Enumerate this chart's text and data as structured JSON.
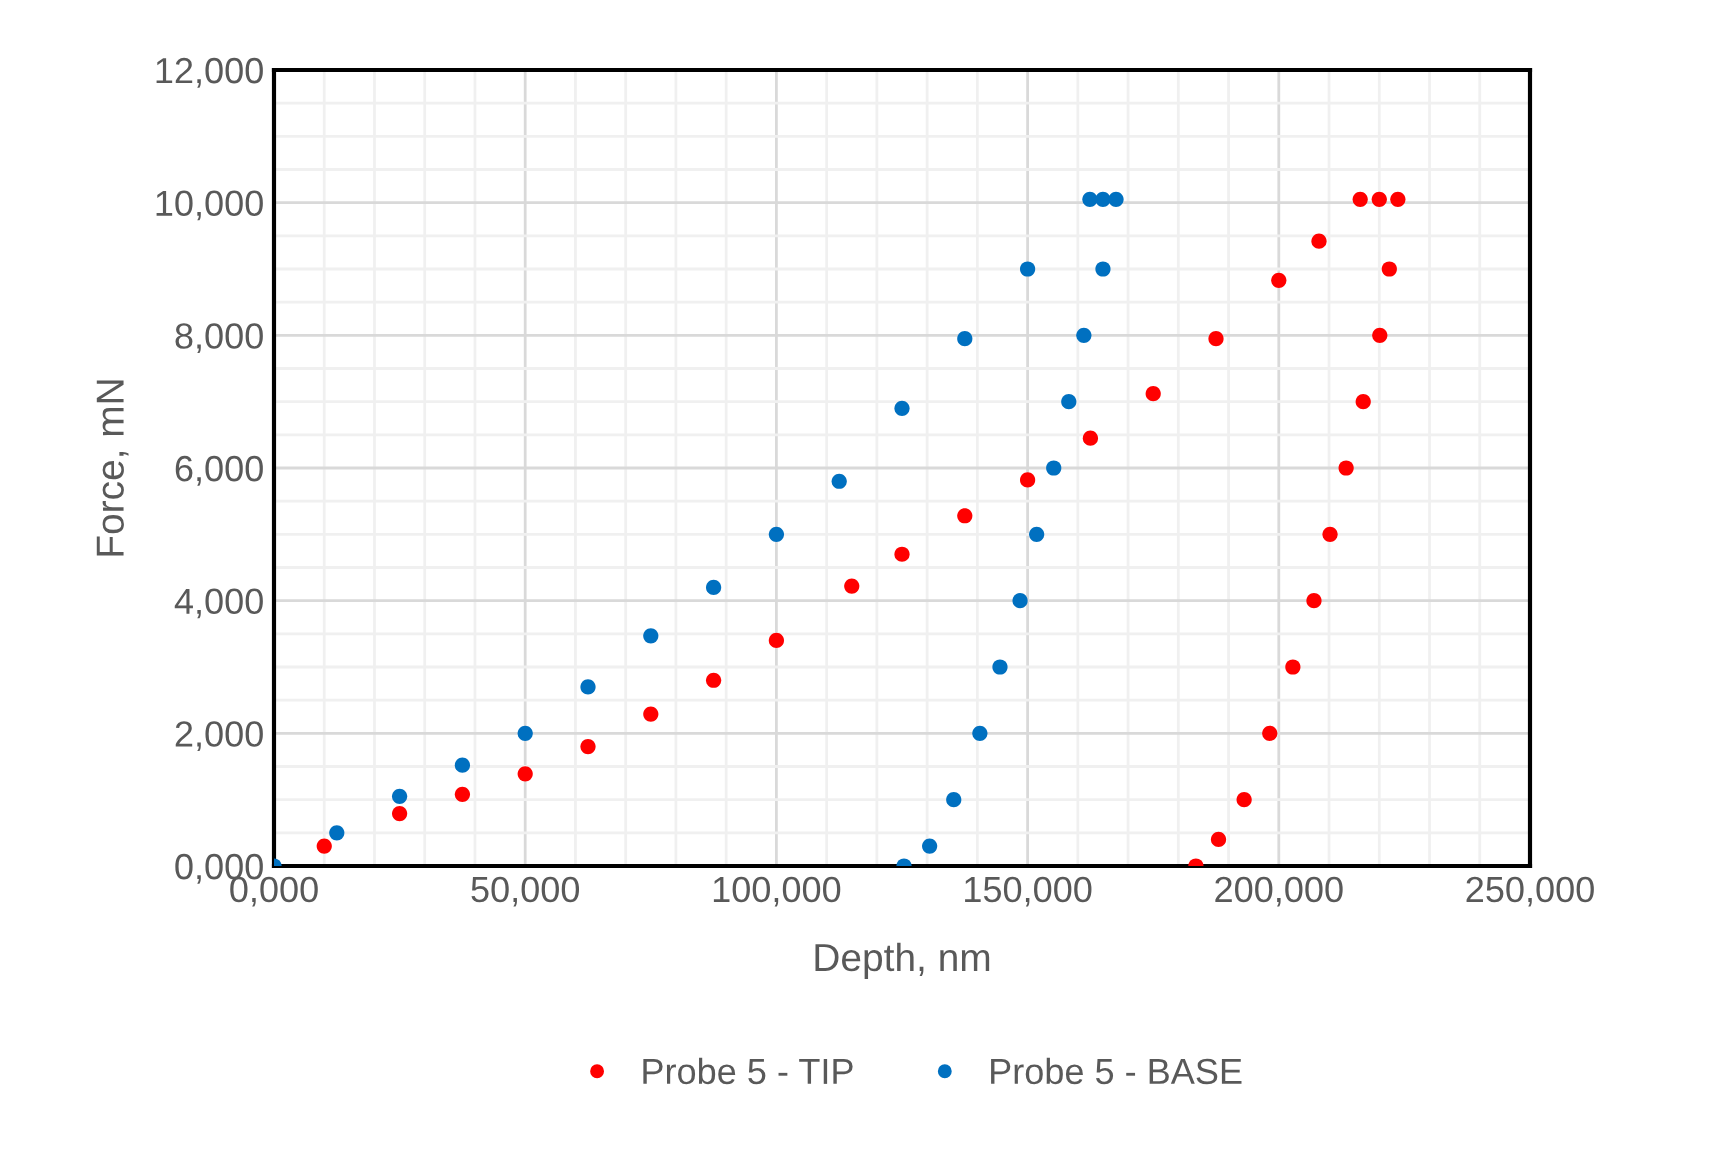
{
  "chart_data": {
    "type": "scatter",
    "xlabel": "Depth, nm",
    "ylabel": "Force, mN",
    "marker": "circle",
    "grid": true,
    "legend": "bottom",
    "xlim": [
      0,
      250
    ],
    "ylim": [
      0,
      12
    ],
    "xticks": [
      {
        "value": 0,
        "label": "0,000"
      },
      {
        "value": 50,
        "label": "50,000"
      },
      {
        "value": 100,
        "label": "100,000"
      },
      {
        "value": 150,
        "label": "150,000"
      },
      {
        "value": 200,
        "label": "200,000"
      },
      {
        "value": 250,
        "label": "250,000"
      }
    ],
    "yticks": [
      {
        "value": 0,
        "label": "0,000"
      },
      {
        "value": 2,
        "label": "2,000"
      },
      {
        "value": 4,
        "label": "4,000"
      },
      {
        "value": 6,
        "label": "6,000"
      },
      {
        "value": 8,
        "label": "8,000"
      },
      {
        "value": 10,
        "label": "10,000"
      },
      {
        "value": 12,
        "label": "12,000"
      }
    ],
    "series": [
      {
        "name": "Probe 5 - TIP",
        "color": "#ff0000",
        "x": [
          10,
          25,
          37.5,
          50,
          62.5,
          75,
          87.5,
          100,
          115,
          125,
          137.5,
          150,
          162.5,
          175,
          187.5,
          200,
          208,
          216.2,
          220,
          223.7,
          222,
          220.1,
          216.8,
          213.4,
          210.2,
          207,
          202.8,
          198.2,
          193.1,
          188,
          183.5
        ],
        "values": [
          0.3,
          0.79,
          1.08,
          1.39,
          1.8,
          2.29,
          2.8,
          3.4,
          4.22,
          4.7,
          5.28,
          5.82,
          6.45,
          7.12,
          7.95,
          8.83,
          9.42,
          10.05,
          10.05,
          10.05,
          9,
          8,
          7,
          6,
          5,
          4,
          3,
          2,
          1,
          0.4,
          0
        ]
      },
      {
        "name": "Probe 5 - BASE",
        "color": "#0070c0",
        "x": [
          0,
          12.5,
          25,
          37.5,
          50,
          62.5,
          75,
          87.5,
          100,
          112.5,
          125,
          137.5,
          150,
          162.4,
          165,
          167.6,
          165,
          161.2,
          158.2,
          155.2,
          151.8,
          148.5,
          144.5,
          140.5,
          135.3,
          130.5,
          125.4
        ],
        "values": [
          0,
          0.5,
          1.05,
          1.52,
          2,
          2.7,
          3.47,
          4.2,
          5,
          5.8,
          6.9,
          7.95,
          9,
          10.05,
          10.05,
          10.05,
          9,
          8,
          7,
          6,
          5,
          4,
          3,
          2,
          1,
          0.3,
          0
        ]
      }
    ]
  }
}
